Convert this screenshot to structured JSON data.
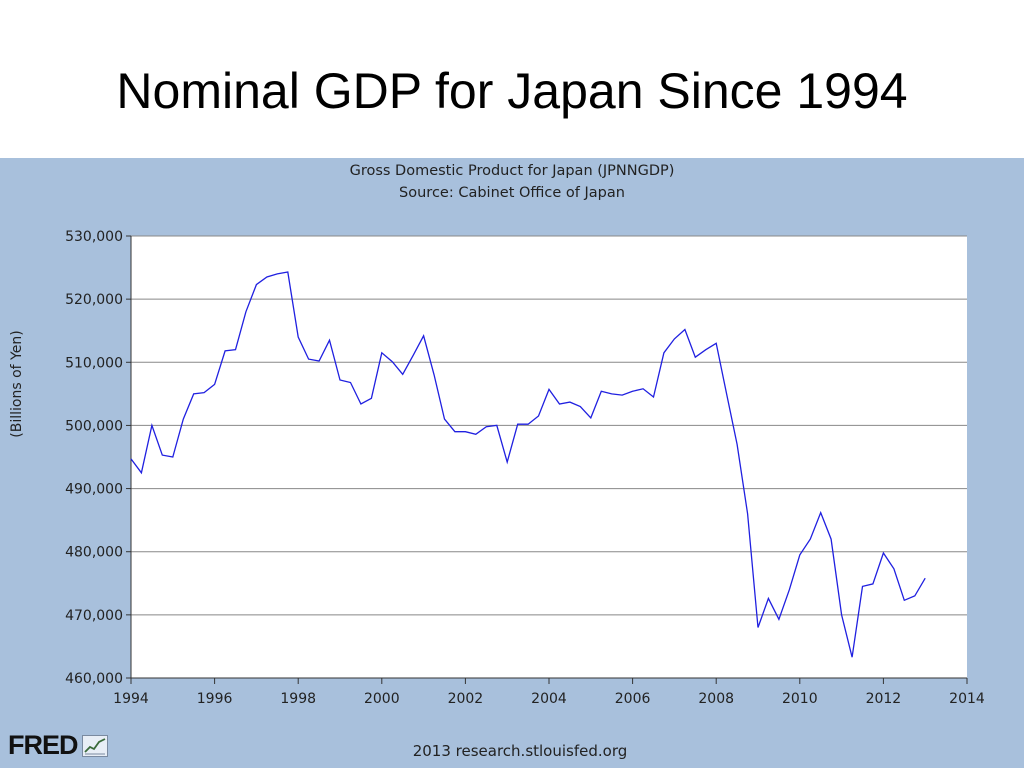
{
  "slide": {
    "title": "Nominal GDP for Japan Since 1994"
  },
  "footer": {
    "text": "2013 research.stlouisfed.org",
    "logo_text": "FRED"
  },
  "colors": {
    "panel_bg": "#a8c0dc",
    "plot_bg": "#ffffff",
    "line": "#2020e0",
    "grid": "#888888"
  },
  "chart_data": {
    "type": "line",
    "title": "Gross Domestic Product for Japan (JPNNGDP)",
    "subtitle": "Source: Cabinet Office of Japan",
    "ylabel": "(Billions of Yen)",
    "xlabel": "",
    "xlim": [
      1994,
      2014
    ],
    "ylim": [
      460000,
      530000
    ],
    "x_ticks": [
      1994,
      1996,
      1998,
      2000,
      2002,
      2004,
      2006,
      2008,
      2010,
      2012,
      2014
    ],
    "y_ticks": [
      "460,000",
      "470,000",
      "480,000",
      "490,000",
      "500,000",
      "510,000",
      "520,000",
      "530,000"
    ],
    "y_tick_values": [
      460000,
      470000,
      480000,
      490000,
      500000,
      510000,
      520000,
      530000
    ],
    "grid": "horizontal",
    "series": [
      {
        "x": [
          1994.0,
          1994.25,
          1994.5,
          1994.75,
          1995.0,
          1995.25,
          1995.5,
          1995.75,
          1996.0,
          1996.25,
          1996.5,
          1996.75,
          1997.0,
          1997.25,
          1997.5,
          1997.75,
          1998.0,
          1998.25,
          1998.5,
          1998.75,
          1999.0,
          1999.25,
          1999.5,
          1999.75,
          2000.0,
          2000.25,
          2000.5,
          2000.75,
          2001.0,
          2001.25,
          2001.5,
          2001.75,
          2002.0,
          2002.25,
          2002.5,
          2002.75,
          2003.0,
          2003.25,
          2003.5,
          2003.75,
          2004.0,
          2004.25,
          2004.5,
          2004.75,
          2005.0,
          2005.25,
          2005.5,
          2005.75,
          2006.0,
          2006.25,
          2006.5,
          2006.75,
          2007.0,
          2007.25,
          2007.5,
          2007.75,
          2008.0,
          2008.25,
          2008.5,
          2008.75,
          2009.0,
          2009.25,
          2009.5,
          2009.75,
          2010.0,
          2010.25,
          2010.5,
          2010.75,
          2011.0,
          2011.25,
          2011.5,
          2011.75,
          2012.0,
          2012.25,
          2012.5,
          2012.75,
          2013.0
        ],
        "y": [
          494700,
          492500,
          500000,
          495300,
          495000,
          501000,
          505000,
          505200,
          506500,
          511800,
          512000,
          518000,
          522300,
          523500,
          524000,
          524300,
          514000,
          510500,
          510200,
          513500,
          507200,
          506800,
          503400,
          504300,
          511500,
          510100,
          508100,
          511100,
          514200,
          508000,
          501000,
          499000,
          499000,
          498600,
          499800,
          500000,
          494200,
          500200,
          500200,
          501500,
          505700,
          503400,
          503700,
          503000,
          501200,
          505400,
          505000,
          504800,
          505400,
          505800,
          504500,
          511500,
          513700,
          515200,
          510800,
          512000,
          513000,
          505000,
          497000,
          486000,
          468000,
          472600,
          469300,
          474000,
          479500,
          482000,
          486200,
          482000,
          470000,
          463300,
          474500,
          474900,
          479800,
          477300,
          472300,
          473000,
          475800
        ]
      }
    ]
  }
}
